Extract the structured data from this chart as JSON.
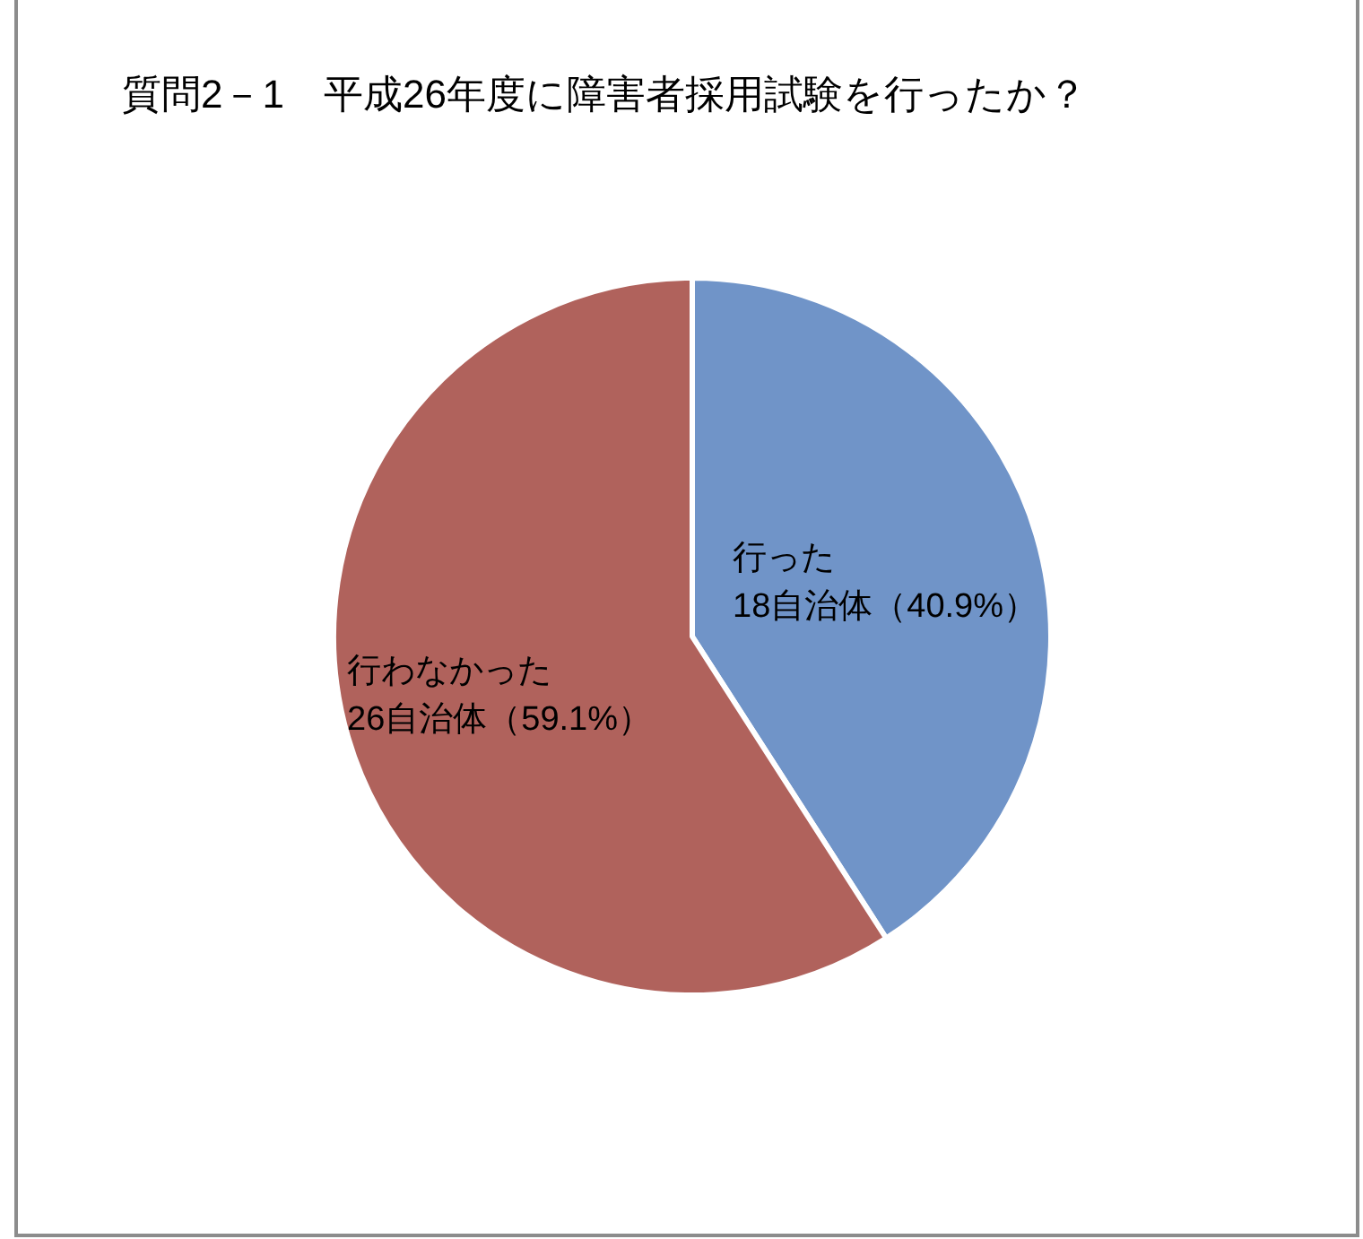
{
  "chart_data": {
    "type": "pie",
    "title": "質問2－1　平成26年度に障害者採用試験を行ったか？",
    "categories": [
      "行った",
      "行わなかった"
    ],
    "values": [
      18,
      26
    ],
    "value_labels": [
      "18自治体（40.9%）",
      "26自治体（59.1%）"
    ],
    "colors": [
      "#7094c8",
      "#b0625c"
    ]
  }
}
